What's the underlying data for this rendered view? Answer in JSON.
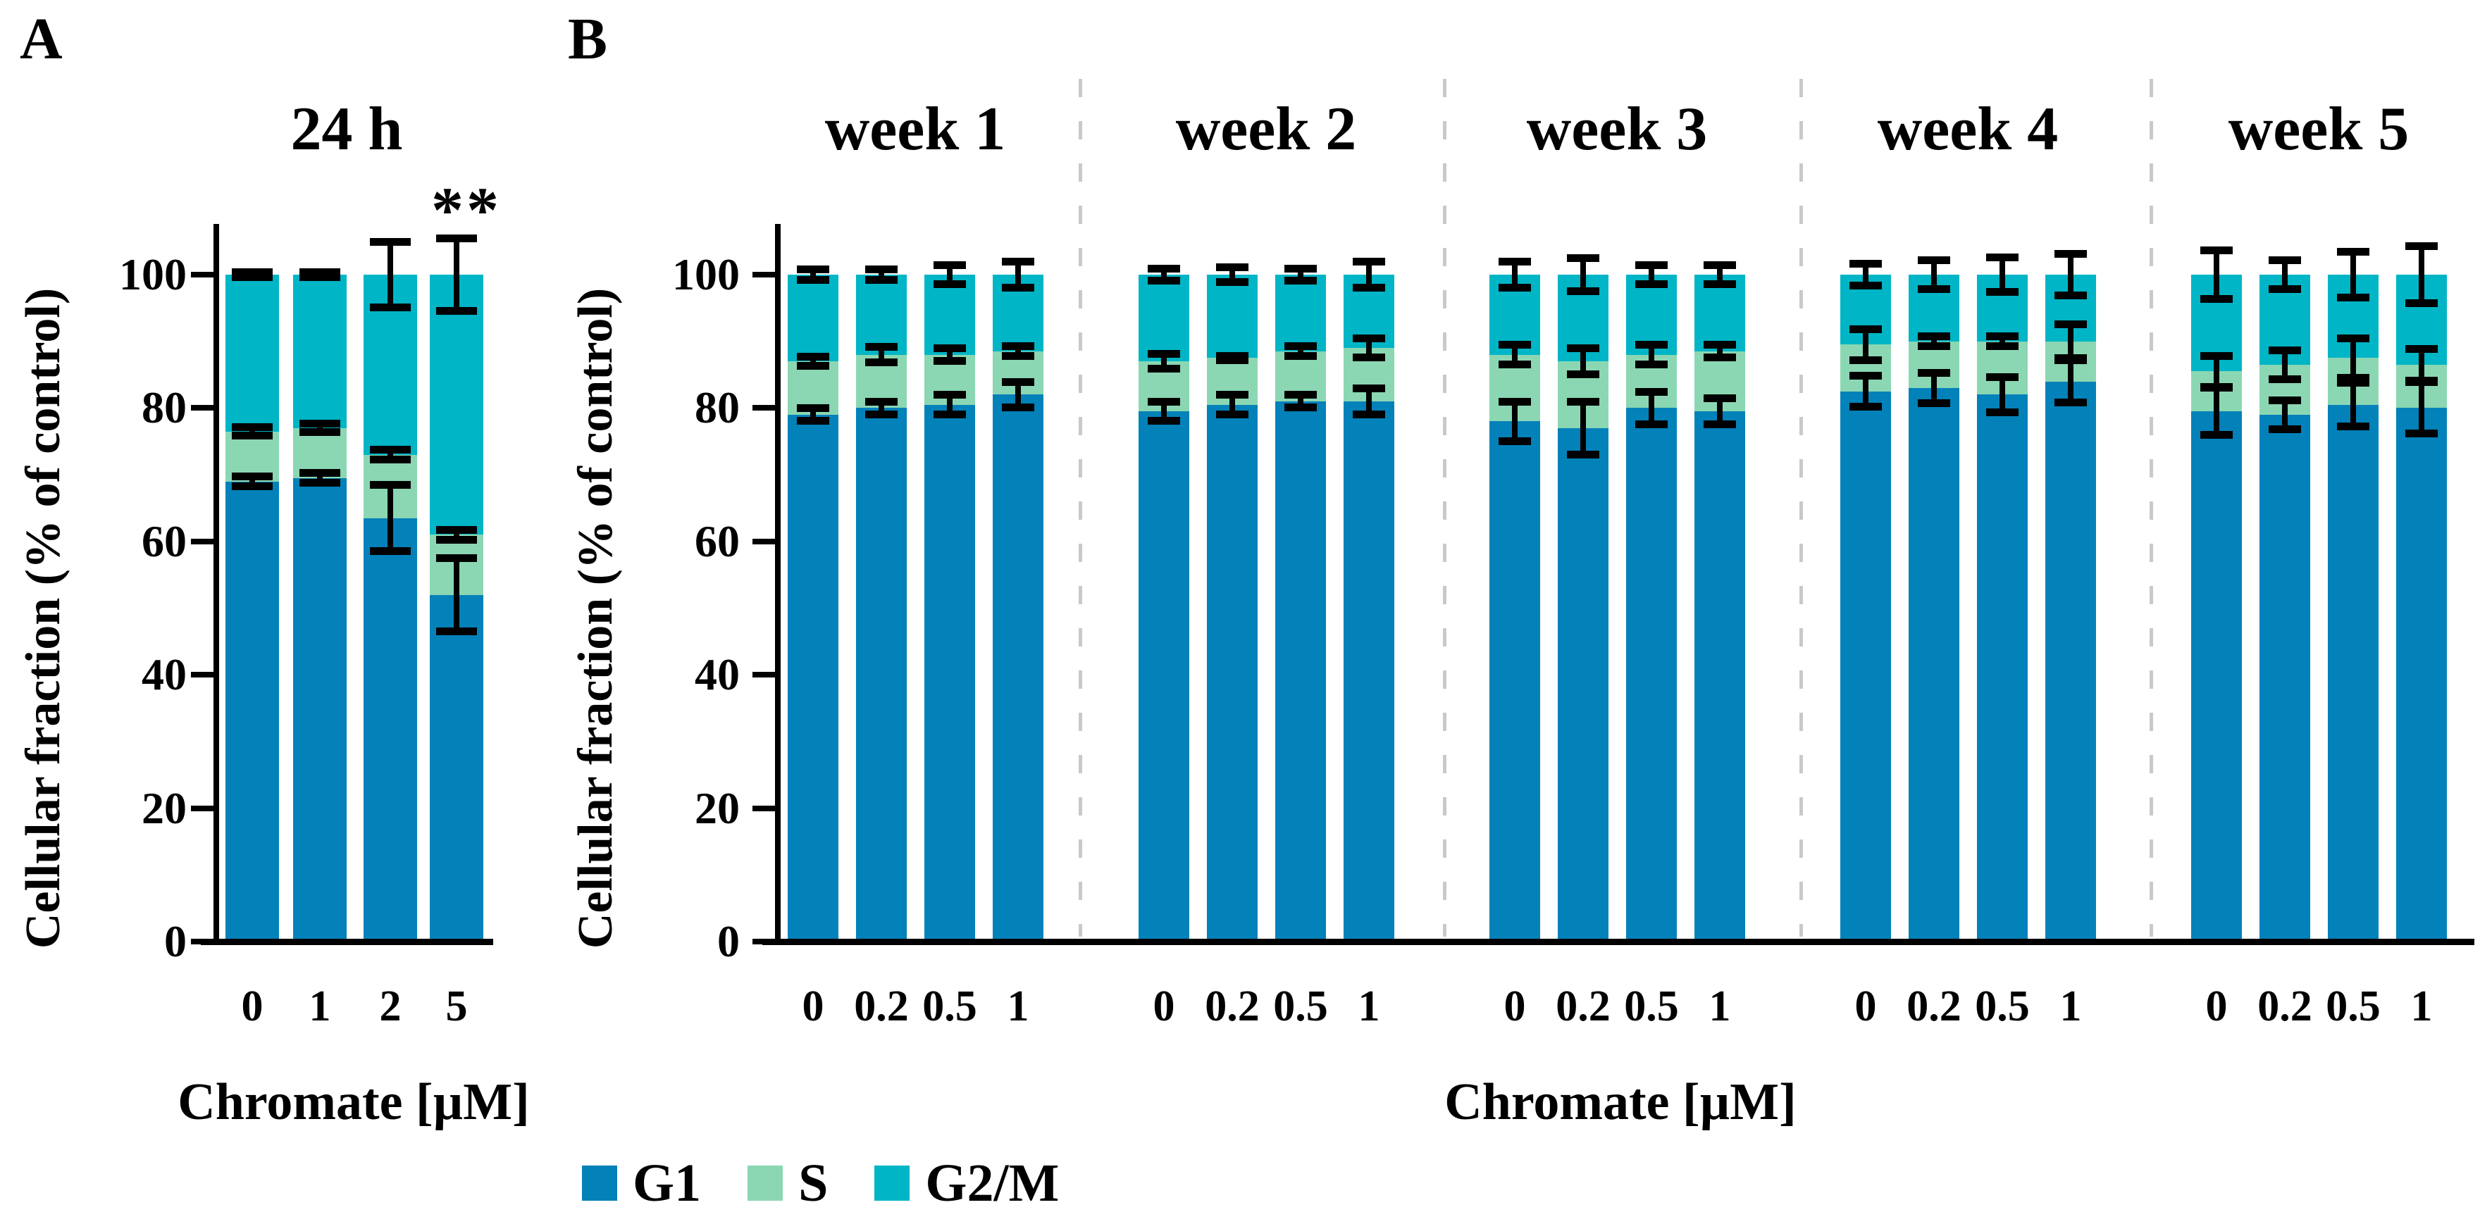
{
  "figure": {
    "panel_a_letter": "A",
    "panel_b_letter": "B",
    "legend": {
      "position": "bottom-left",
      "items": [
        {
          "label": "G1",
          "color": "#0381B9"
        },
        {
          "label": "S",
          "color": "#8BD7B3"
        },
        {
          "label": "G2/M",
          "color": "#00B5C6"
        }
      ]
    }
  },
  "chart_data": [
    {
      "panel": "A",
      "type": "bar",
      "stacked": true,
      "title": "24 h",
      "xlabel": "Chromate [µM]",
      "ylabel": "Cellular fraction (% of control)",
      "ylim": [
        0,
        110
      ],
      "yticks": [
        0,
        20,
        40,
        60,
        80,
        100
      ],
      "grid": false,
      "categories": [
        "0",
        "1",
        "2",
        "5"
      ],
      "series": [
        {
          "name": "G1",
          "color": "#0381B9",
          "values": [
            69,
            69.5,
            63.5,
            52
          ]
        },
        {
          "name": "S",
          "color": "#8BD7B3",
          "values": [
            7.5,
            7.5,
            9.5,
            9
          ]
        },
        {
          "name": "G2/M",
          "color": "#00B5C6",
          "values": [
            23.5,
            23,
            27,
            39
          ]
        }
      ],
      "error_bars": {
        "g1_top": [
          0.8,
          0.8,
          5,
          5.5
        ],
        "s_top": [
          0.7,
          0.7,
          0.8,
          0.8
        ],
        "total": [
          0.4,
          0.4,
          5,
          5.5
        ]
      },
      "significance": [
        {
          "category": "5",
          "text": "**"
        }
      ]
    },
    {
      "panel": "B",
      "type": "bar",
      "stacked": true,
      "xlabel": "Chromate [µM]",
      "ylabel": "Cellular fraction (% of control)",
      "ylim": [
        0,
        110
      ],
      "yticks": [
        0,
        20,
        40,
        60,
        80,
        100
      ],
      "grid": false,
      "categories": [
        "0",
        "0.2",
        "0.5",
        "1"
      ],
      "series_names": [
        "G1",
        "S",
        "G2/M"
      ],
      "series_colors": {
        "G1": "#0381B9",
        "S": "#8BD7B3",
        "G2/M": "#00B5C6"
      },
      "groups": [
        {
          "label": "week 1",
          "G1": [
            79,
            80,
            80.5,
            82
          ],
          "S": [
            8,
            8,
            7.5,
            6.5
          ],
          "G2M": [
            13,
            12,
            12,
            11.5
          ],
          "error_g1": [
            1,
            1,
            1.5,
            2
          ],
          "error_s_top": [
            0.7,
            1.2,
            1,
            0.8
          ],
          "error_total": [
            0.8,
            0.8,
            1.5,
            2
          ]
        },
        {
          "label": "week 2",
          "G1": [
            79.5,
            80.5,
            81,
            81
          ],
          "S": [
            7.5,
            7,
            7.5,
            8
          ],
          "G2M": [
            13,
            12.5,
            11.5,
            11
          ],
          "error_g1": [
            1.5,
            1.5,
            1,
            2
          ],
          "error_s_top": [
            1.2,
            0.4,
            0.8,
            1.5
          ],
          "error_total": [
            1,
            1.2,
            1,
            2
          ]
        },
        {
          "label": "week 3",
          "G1": [
            78,
            77,
            80,
            79.5
          ],
          "S": [
            10,
            10,
            8,
            9
          ],
          "G2M": [
            12,
            13,
            12,
            11.5
          ],
          "error_g1": [
            3,
            4,
            2.5,
            2
          ],
          "error_s_top": [
            1.5,
            2,
            1.5,
            1
          ],
          "error_total": [
            2,
            2.5,
            1.5,
            1.5
          ]
        },
        {
          "label": "week 4",
          "G1": [
            82.5,
            83,
            82,
            84
          ],
          "S": [
            7,
            7,
            8,
            6
          ],
          "G2M": [
            10.5,
            10,
            10,
            10
          ],
          "error_g1": [
            2.4,
            2.3,
            2.7,
            3.2
          ],
          "error_s_top": [
            2.4,
            0.8,
            0.8,
            2.6
          ],
          "error_total": [
            1.7,
            2.2,
            2.6,
            3.2
          ]
        },
        {
          "label": "week 5",
          "G1": [
            79.5,
            79,
            80.5,
            80
          ],
          "S": [
            6,
            7.5,
            7,
            6.5
          ],
          "G2M": [
            14.5,
            13.5,
            12.5,
            13.5
          ],
          "error_g1": [
            3.6,
            2.2,
            3.3,
            3.9
          ],
          "error_s_top": [
            2.4,
            2.2,
            3,
            2.4
          ],
          "error_total": [
            3.7,
            2.2,
            3.5,
            4.3
          ]
        }
      ]
    }
  ]
}
